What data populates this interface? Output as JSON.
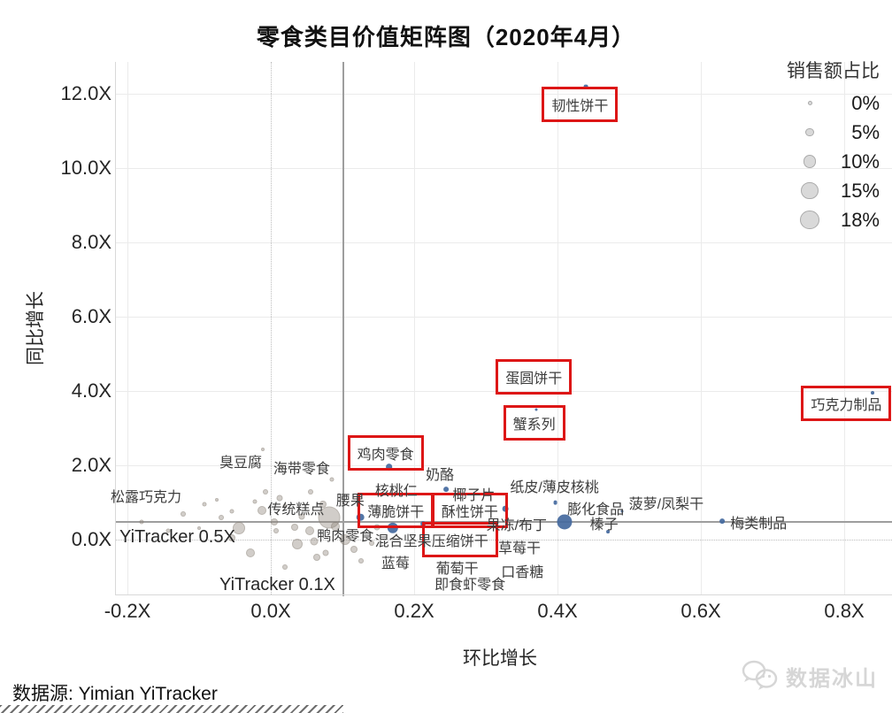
{
  "title": "零食类目价值矩阵图（2020年4月）",
  "axes": {
    "x": {
      "label": "环比增长",
      "ticks": [
        {
          "label": "-0.2X",
          "value": -0.2
        },
        {
          "label": "0.0X",
          "value": 0.0
        },
        {
          "label": "0.2X",
          "value": 0.2
        },
        {
          "label": "0.4X",
          "value": 0.4
        },
        {
          "label": "0.6X",
          "value": 0.6
        },
        {
          "label": "0.8X",
          "value": 0.8
        }
      ]
    },
    "y": {
      "label": "同比增长",
      "ticks": [
        {
          "label": "0.0X",
          "value": 0.0
        },
        {
          "label": "2.0X",
          "value": 2.0
        },
        {
          "label": "4.0X",
          "value": 4.0
        },
        {
          "label": "6.0X",
          "value": 6.0
        },
        {
          "label": "8.0X",
          "value": 8.0
        },
        {
          "label": "10.0X",
          "value": 10.0
        },
        {
          "label": "12.0X",
          "value": 12.0
        }
      ]
    }
  },
  "legend": {
    "title": "销售额占比",
    "entries": [
      {
        "label": "0%",
        "pct": 0
      },
      {
        "label": "5%",
        "pct": 5
      },
      {
        "label": "10%",
        "pct": 10
      },
      {
        "label": "15%",
        "pct": 15
      },
      {
        "label": "18%",
        "pct": 18
      }
    ]
  },
  "reference_lines": {
    "horizontal": {
      "label": "YiTracker 0.5X",
      "value": 0.5
    },
    "vertical": {
      "label": "YiTracker 0.1X",
      "value": 0.1
    }
  },
  "chart_data": {
    "type": "scatter",
    "xlabel": "环比增长",
    "ylabel": "同比增长",
    "xlim": [
      -0.25,
      0.87
    ],
    "ylim": [
      -1.5,
      12.8
    ],
    "size_legend_title": "销售额占比",
    "series": [
      {
        "name": "categories",
        "points": [
          {
            "name": "韧性饼干",
            "x": 0.44,
            "y": 12.2,
            "pct": 2,
            "dot": true,
            "boxed": true,
            "dx": -7,
            "dy": 20
          },
          {
            "name": "巧克力制品",
            "x": 0.84,
            "y": 3.95,
            "pct": 1,
            "dot": true,
            "boxed": true,
            "dx": -30,
            "dy": 12
          },
          {
            "name": "蛋圆饼干",
            "x": 0.367,
            "y": 4.38,
            "pct": 0,
            "dot": false,
            "boxed": true,
            "dx": 0,
            "dy": 0
          },
          {
            "name": "蟹系列",
            "x": 0.37,
            "y": 3.5,
            "pct": 0,
            "dot": true,
            "boxed": true,
            "dx": -2,
            "dy": 15
          },
          {
            "name": "鸡肉零食",
            "x": 0.165,
            "y": 1.95,
            "pct": 5,
            "dot": true,
            "boxed": true,
            "dx": -4,
            "dy": -16
          },
          {
            "name": "薄脆饼干",
            "x": 0.125,
            "y": 0.6,
            "pct": 6,
            "dot": true,
            "boxed": true,
            "dx": 40,
            "dy": -8
          },
          {
            "name": "酥性饼干",
            "x": 0.327,
            "y": 0.83,
            "pct": 4,
            "dot": true,
            "boxed": true,
            "dx": -40,
            "dy": 2
          },
          {
            "name": "压缩饼干",
            "x": 0.212,
            "y": 0.43,
            "pct": 3,
            "dot": true,
            "boxed": true,
            "dx": 42,
            "dy": 18
          },
          {
            "name": "椰子片",
            "x": 0.245,
            "y": 1.36,
            "pct": 3,
            "dot": true,
            "boxed": false,
            "dx": 31,
            "dy": 5
          },
          {
            "name": "纸皮/薄皮核桃",
            "x": 0.397,
            "y": 1.0,
            "pct": 2,
            "dot": true,
            "boxed": false,
            "dx": -1,
            "dy": -19
          },
          {
            "name": "膨化食品",
            "x": 0.41,
            "y": 0.48,
            "pct": 15,
            "dot": true,
            "boxed": false,
            "dx": 35,
            "dy": -16
          },
          {
            "name": "菠萝/凤梨干",
            "x": 0.49,
            "y": 0.76,
            "pct": 0,
            "dot": true,
            "boxed": false,
            "dx": 50,
            "dy": -10
          },
          {
            "name": "梅类制品",
            "x": 0.63,
            "y": 0.5,
            "pct": 3,
            "dot": true,
            "boxed": false,
            "dx": 41,
            "dy": 1
          },
          {
            "name": "榛子",
            "x": 0.47,
            "y": 0.21,
            "pct": 1,
            "dot": true,
            "boxed": false,
            "dx": -4,
            "dy": -10
          },
          {
            "name": "混合坚果",
            "x": 0.17,
            "y": 0.31,
            "pct": 10,
            "dot": true,
            "boxed": false,
            "dx": 12,
            "dy": 13
          },
          {
            "name": "核桃仁",
            "x": 0.175,
            "y": 1.36,
            "pct": 0,
            "dot": false,
            "boxed": false,
            "dx": 0,
            "dy": 0
          },
          {
            "name": "奶酪",
            "x": 0.236,
            "y": 1.79,
            "pct": 0,
            "dot": false,
            "boxed": false,
            "dx": 0,
            "dy": 0
          },
          {
            "name": "腰果",
            "x": 0.111,
            "y": 1.1,
            "pct": 0,
            "dot": false,
            "boxed": false,
            "dx": 0,
            "dy": 0
          },
          {
            "name": "臭豆腐",
            "x": -0.042,
            "y": 2.12,
            "pct": 0,
            "dot": false,
            "boxed": false,
            "dx": 0,
            "dy": 0
          },
          {
            "name": "海带零食",
            "x": 0.043,
            "y": 1.95,
            "pct": 0,
            "dot": false,
            "boxed": false,
            "dx": 0,
            "dy": 0
          },
          {
            "name": "松露巧克力",
            "x": -0.174,
            "y": 1.19,
            "pct": 0,
            "dot": false,
            "boxed": false,
            "dx": 0,
            "dy": 0
          },
          {
            "name": "传统糕点",
            "x": 0.035,
            "y": 0.86,
            "pct": 0,
            "dot": false,
            "boxed": false,
            "dx": 0,
            "dy": 0
          },
          {
            "name": "鸭肉零食",
            "x": 0.104,
            "y": 0.14,
            "pct": 0,
            "dot": false,
            "boxed": false,
            "dx": 0,
            "dy": 0
          },
          {
            "name": "蓝莓",
            "x": 0.174,
            "y": -0.6,
            "pct": 0,
            "dot": false,
            "boxed": false,
            "dx": 0,
            "dy": 0
          },
          {
            "name": "葡萄干",
            "x": 0.26,
            "y": -0.74,
            "pct": 0,
            "dot": false,
            "boxed": false,
            "dx": 0,
            "dy": 0
          },
          {
            "name": "果冻/布丁",
            "x": 0.343,
            "y": 0.43,
            "pct": 0,
            "dot": false,
            "boxed": false,
            "dx": 0,
            "dy": 0
          },
          {
            "name": "草莓干",
            "x": 0.347,
            "y": -0.19,
            "pct": 0,
            "dot": false,
            "boxed": false,
            "dx": 0,
            "dy": 0
          },
          {
            "name": "口香糖",
            "x": 0.351,
            "y": -0.83,
            "pct": 0,
            "dot": false,
            "boxed": false,
            "dx": 0,
            "dy": 0
          },
          {
            "name": "即食虾零食",
            "x": 0.278,
            "y": -1.17,
            "pct": 0,
            "dot": false,
            "boxed": false,
            "dx": 0,
            "dy": 0
          }
        ]
      },
      {
        "name": "background_unlabeled",
        "points": [
          {
            "x": -0.18,
            "y": 0.48,
            "r": 1.5
          },
          {
            "x": -0.143,
            "y": 0.24,
            "r": 1.5
          },
          {
            "x": -0.122,
            "y": 0.69,
            "r": 2
          },
          {
            "x": -0.1,
            "y": 0.3,
            "r": 1
          },
          {
            "x": -0.093,
            "y": 0.95,
            "r": 1.5
          },
          {
            "x": -0.075,
            "y": 1.07,
            "r": 1
          },
          {
            "x": -0.069,
            "y": 0.6,
            "r": 2
          },
          {
            "x": -0.054,
            "y": 0.05,
            "r": 3
          },
          {
            "x": -0.054,
            "y": 0.76,
            "r": 1.5
          },
          {
            "x": -0.044,
            "y": 0.31,
            "r": 6
          },
          {
            "x": -0.028,
            "y": -0.36,
            "r": 4
          },
          {
            "x": -0.022,
            "y": 1.02,
            "r": 1.5
          },
          {
            "x": -0.012,
            "y": 0.79,
            "r": 4
          },
          {
            "x": -0.011,
            "y": 2.43,
            "r": 1
          },
          {
            "x": -0.007,
            "y": 1.29,
            "r": 2
          },
          {
            "x": 0.005,
            "y": 0.48,
            "r": 3
          },
          {
            "x": 0.007,
            "y": 0.24,
            "r": 2
          },
          {
            "x": 0.012,
            "y": 1.12,
            "r": 2.5
          },
          {
            "x": 0.015,
            "y": 1.95,
            "r": 1.5
          },
          {
            "x": 0.02,
            "y": -0.74,
            "r": 2
          },
          {
            "x": 0.02,
            "y": 0.9,
            "r": 1.5
          },
          {
            "x": 0.033,
            "y": 0.33,
            "r": 3
          },
          {
            "x": 0.037,
            "y": -0.12,
            "r": 5
          },
          {
            "x": 0.043,
            "y": 0.62,
            "r": 2.5
          },
          {
            "x": 0.054,
            "y": 0.24,
            "r": 4
          },
          {
            "x": 0.056,
            "y": 1.29,
            "r": 2
          },
          {
            "x": 0.06,
            "y": -0.05,
            "r": 3.5
          },
          {
            "x": 0.064,
            "y": -0.48,
            "r": 3
          },
          {
            "x": 0.073,
            "y": 0.95,
            "r": 3
          },
          {
            "x": 0.077,
            "y": -0.36,
            "r": 2.5
          },
          {
            "x": 0.082,
            "y": 0.6,
            "r": 11.5
          },
          {
            "x": 0.085,
            "y": 1.62,
            "r": 1.5
          },
          {
            "x": 0.09,
            "y": 0.35,
            "r": 4
          },
          {
            "x": 0.104,
            "y": 0.0,
            "r": 5
          },
          {
            "x": 0.116,
            "y": -0.26,
            "r": 3
          },
          {
            "x": 0.126,
            "y": -0.57,
            "r": 2
          },
          {
            "x": 0.141,
            "y": -0.1,
            "r": 2
          },
          {
            "x": 0.148,
            "y": 0.33,
            "r": 2.5
          }
        ]
      }
    ]
  },
  "footer": {
    "source": "数据源: Yimian YiTracker",
    "watermark": "数据冰山"
  },
  "colors": {
    "dot_blue": "#44699e",
    "dot_gray": "#92887e",
    "box_red": "#dd1616",
    "ref_line": "#9e9e9e",
    "legend_circle": "#d9d9d9"
  }
}
